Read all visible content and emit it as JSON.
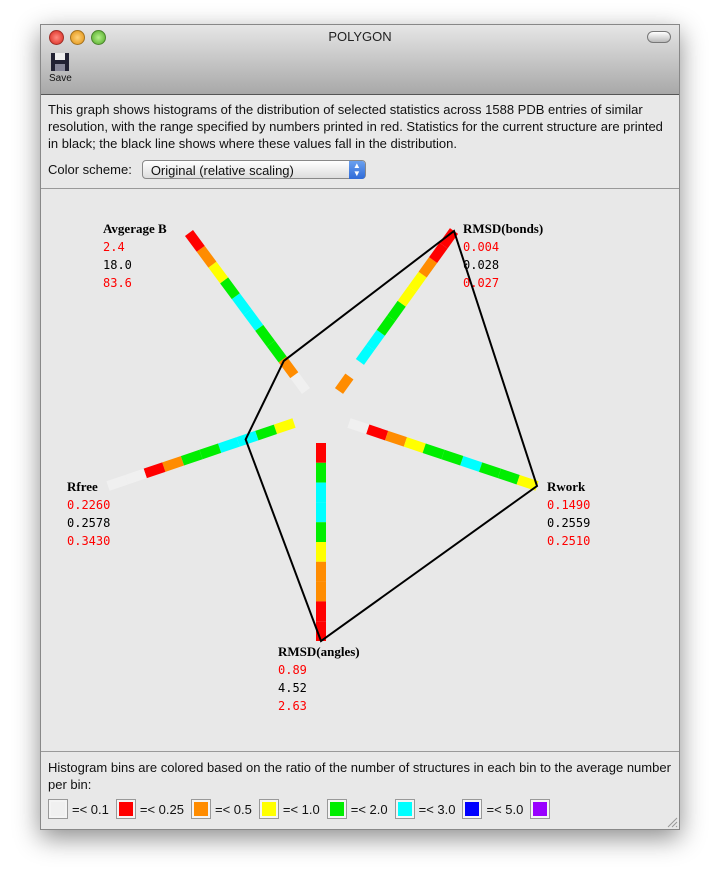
{
  "window": {
    "title": "POLYGON",
    "save_label": "Save"
  },
  "description": "This graph shows histograms of the distribution of selected statistics across 1588 PDB entries of similar resolution, with the range specified by numbers printed in red.  Statistics for the current structure are printed in black; the black line shows where these values fall in the distribution.",
  "color_scheme": {
    "label": "Color scheme:",
    "value": "Original (relative scaling)"
  },
  "colors": {
    "white": "#f0f0f0",
    "red": "#ff0000",
    "orange": "#ff8c00",
    "yellow": "#ffff00",
    "green": "#00ee00",
    "cyan": "#00ffff",
    "blue": "#0000ff",
    "purple": "#9900ff",
    "none": "#e8e8e8"
  },
  "chart_data": {
    "type": "radar-histogram",
    "axes": [
      {
        "name": "Avgerage B",
        "min": "2.4",
        "current": "18.0",
        "max": "83.6",
        "fraction": 0.19,
        "bins": [
          "white",
          "orange",
          "green",
          "green",
          "cyan",
          "cyan",
          "green",
          "yellow",
          "orange",
          "red"
        ]
      },
      {
        "name": "RMSD(bonds)",
        "min": "0.004",
        "current": "0.028",
        "max": "0.027",
        "fraction": 1.0,
        "bins": [
          "orange",
          "none",
          "cyan",
          "cyan",
          "green",
          "green",
          "yellow",
          "yellow",
          "orange",
          "red",
          "red"
        ]
      },
      {
        "name": "Rwork",
        "min": "0.1490",
        "current": "0.2559",
        "max": "0.2510",
        "fraction": 1.0,
        "bins": [
          "white",
          "red",
          "orange",
          "yellow",
          "green",
          "green",
          "cyan",
          "green",
          "green",
          "yellow"
        ]
      },
      {
        "name": "RMSD(angles)",
        "min": "0.89",
        "current": "4.52",
        "max": "2.63",
        "fraction": 1.0,
        "bins": [
          "red",
          "green",
          "cyan",
          "cyan",
          "green",
          "yellow",
          "orange",
          "orange",
          "red",
          "red"
        ]
      },
      {
        "name": "Rfree",
        "min": "0.2260",
        "current": "0.2578",
        "max": "0.3430",
        "fraction": 0.26,
        "bins": [
          "yellow",
          "green",
          "cyan",
          "cyan",
          "green",
          "green",
          "orange",
          "red",
          "white",
          "white"
        ]
      }
    ]
  },
  "legend": {
    "text": "Histogram bins are colored based on the ratio of the number of structures in each bin to the average number per bin:",
    "items": [
      {
        "color": "white",
        "label": "=< 0.1"
      },
      {
        "color": "red",
        "label": "=< 0.25"
      },
      {
        "color": "orange",
        "label": "=< 0.5"
      },
      {
        "color": "yellow",
        "label": "=< 1.0"
      },
      {
        "color": "green",
        "label": "=< 2.0"
      },
      {
        "color": "cyan",
        "label": "=< 3.0"
      },
      {
        "color": "blue",
        "label": "=< 5.0"
      },
      {
        "color": "purple",
        "label": ""
      }
    ]
  }
}
